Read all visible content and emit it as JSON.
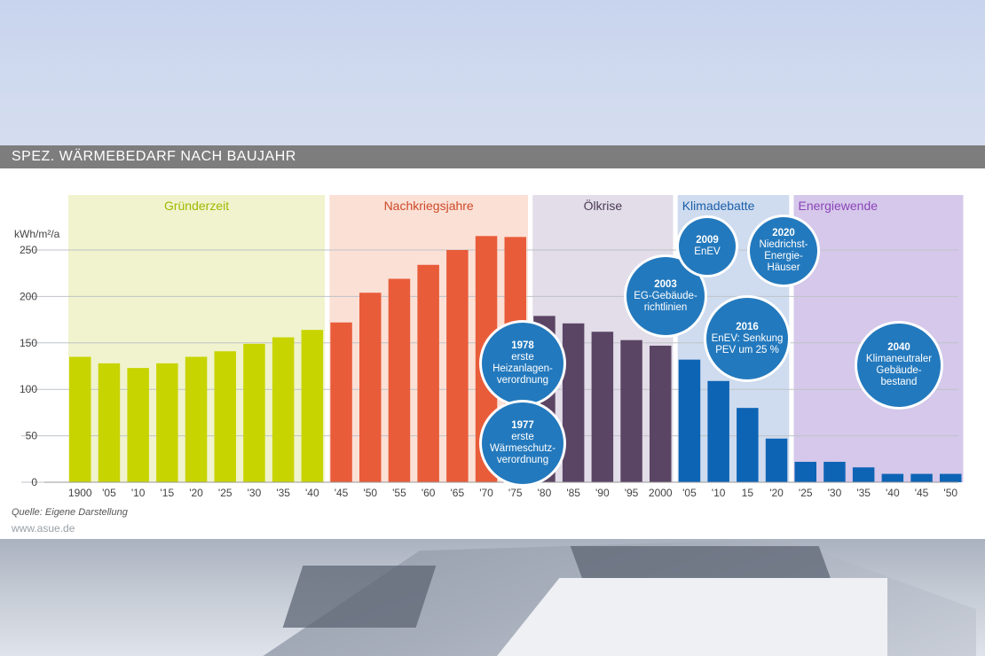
{
  "title": "SPEZ. WÄRMEBEDARF NACH BAUJAHR",
  "source": "Quelle: Eigene Darstellung",
  "website": "www.asue.de",
  "chart_data": {
    "type": "bar",
    "ylabel": "kWh/m²/a",
    "ylim": [
      0,
      260
    ],
    "yticks": [
      0,
      50,
      100,
      150,
      200,
      250
    ],
    "grid": true,
    "categories": [
      "1900",
      "'05",
      "'10",
      "'15",
      "'20",
      "'25",
      "'30",
      "'35",
      "'40",
      "'45",
      "'50",
      "'55",
      "'60",
      "'65",
      "'70",
      "'75",
      "'80",
      "'85",
      "'90",
      "'95",
      "2000",
      "'05",
      "'10",
      "15",
      "'20",
      "'25",
      "'30",
      "'35",
      "'40",
      "'45",
      "'50"
    ],
    "values": [
      135,
      128,
      123,
      128,
      135,
      141,
      149,
      156,
      164,
      172,
      204,
      219,
      234,
      250,
      265,
      264,
      179,
      171,
      162,
      153,
      147,
      132,
      109,
      80,
      47,
      22,
      22,
      16,
      9,
      9,
      9
    ],
    "eras": [
      {
        "name": "Gründerzeit",
        "from": 0,
        "to": 8,
        "bar_color": "#c8d400",
        "bg_color": "#f0f3cd",
        "label_color": "#a3b800"
      },
      {
        "name": "Nachkriegsjahre",
        "from": 9,
        "to": 15,
        "bar_color": "#e85c3a",
        "bg_color": "#fbe0d6",
        "label_color": "#cc4a28"
      },
      {
        "name": "Ölkrise",
        "from": 16,
        "to": 20,
        "bar_color": "#5b4565",
        "bg_color": "#e2dde8",
        "label_color": "#4b3a55"
      },
      {
        "name": "Klimadebatte",
        "from": 21,
        "to": 24,
        "bar_color": "#0e64b4",
        "bg_color": "#cfdcef",
        "label_color": "#1b5faa"
      },
      {
        "name": "Energiewende",
        "from": 25,
        "to": 30,
        "bar_color": "#0e64b4",
        "bg_color": "#d5c8ea",
        "label_color": "#8b44b8"
      }
    ],
    "annotations": [
      {
        "year": "1978",
        "text": "erste\nHeizanlagen-\nverordnung"
      },
      {
        "year": "1977",
        "text": "erste\nWärmeschutz-\nverordnung"
      },
      {
        "year": "2003",
        "text": "EG-Gebäude-\nrichtlinien"
      },
      {
        "year": "2009",
        "text": "EnEV"
      },
      {
        "year": "2020",
        "text": "Niedrichst-\nEnergie-\nHäuser"
      },
      {
        "year": "2016",
        "text": "EnEV: Senkung\nPEV um 25 %"
      },
      {
        "year": "2040",
        "text": "Klimaneutraler\nGebäude-\nbestand"
      }
    ]
  }
}
